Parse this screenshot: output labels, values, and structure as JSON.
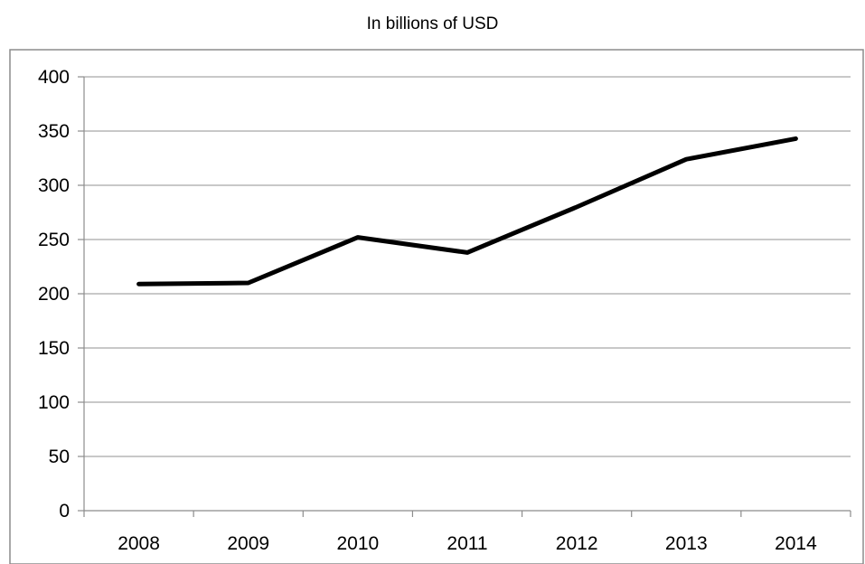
{
  "chart_data": {
    "type": "line",
    "title": "In billions of USD",
    "xlabel": "",
    "ylabel": "",
    "categories": [
      "2008",
      "2009",
      "2010",
      "2011",
      "2012",
      "2013",
      "2014"
    ],
    "series": [
      {
        "values": [
          209,
          210,
          252,
          238,
          280,
          324,
          343
        ]
      }
    ],
    "ylim": [
      0,
      400
    ],
    "yticks": [
      "0",
      "50",
      "100",
      "150",
      "200",
      "250",
      "300",
      "350",
      "400"
    ],
    "grid": true,
    "legend": "none",
    "colors": {
      "line": "#000000",
      "grid": "#a6a6a6",
      "frame": "#8c8c8c"
    }
  }
}
